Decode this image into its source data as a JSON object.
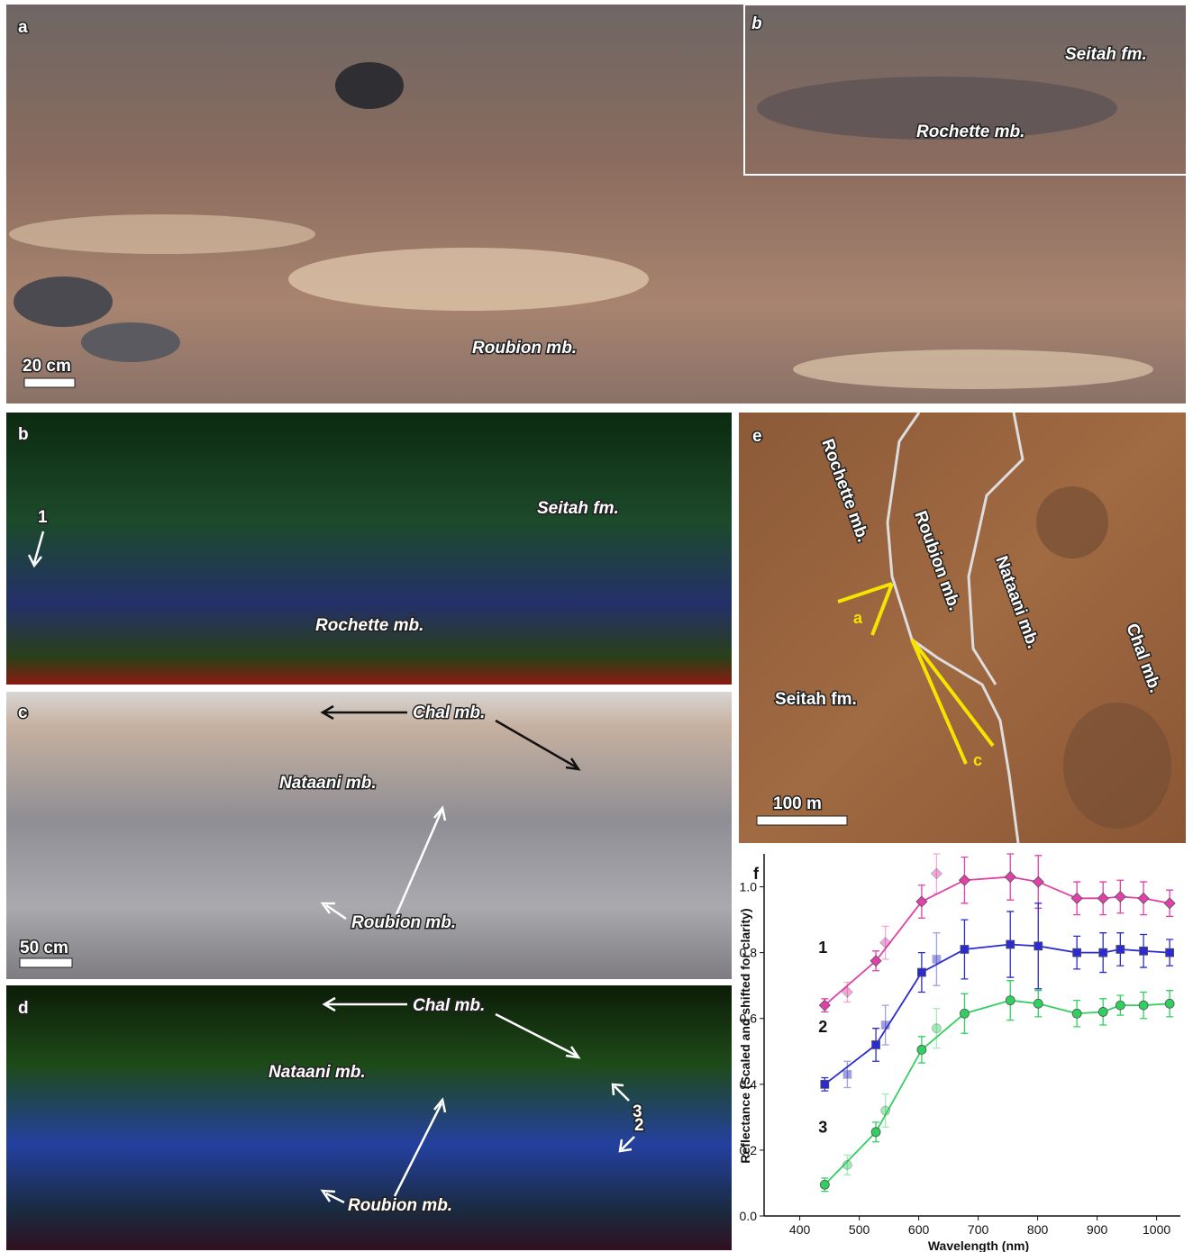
{
  "panels": {
    "a": {
      "label": "a",
      "inset_label": "b",
      "inset_seitah": "Seitah fm.",
      "inset_rochette": "Rochette mb.",
      "roubion": "Roubion mb.",
      "scale": "20 cm"
    },
    "b": {
      "label": "b",
      "seitah": "Seitah fm.",
      "rochette": "Rochette mb.",
      "point": "1"
    },
    "c": {
      "label": "c",
      "chal": "Chal mb.",
      "nataani": "Nataani mb.",
      "roubion": "Roubion mb.",
      "scale": "50 cm"
    },
    "d": {
      "label": "d",
      "chal": "Chal mb.",
      "nataani": "Nataani mb.",
      "roubion": "Roubion mb.",
      "point3": "3",
      "point2": "2"
    },
    "e": {
      "label": "e",
      "rochette": "Rochette mb.",
      "roubion": "Roubion mb.",
      "nataani": "Nataani mb.",
      "chal": "Chal mb.",
      "seitah": "Seitah fm.",
      "view_a": "a",
      "view_c": "c",
      "scale": "100 m"
    }
  },
  "chart_data": {
    "type": "line",
    "label": "f",
    "xlabel": "Wavelength (nm)",
    "ylabel": "Reflectance (Scaled and shifted for clarity)",
    "x": [
      442,
      528,
      605,
      677,
      754,
      801,
      866,
      910,
      939,
      978,
      1022
    ],
    "xlim": [
      340,
      1040
    ],
    "xticks": [
      400,
      500,
      600,
      700,
      800,
      900,
      1000
    ],
    "ylim": [
      0,
      1.1
    ],
    "yticks": [
      {
        "value": 0,
        "label": "0.0"
      },
      0.2,
      0.4,
      0.6,
      0.8,
      {
        "value": 1,
        "label": "1.0"
      }
    ],
    "series": [
      {
        "name": "1",
        "color": "#e040a8",
        "marker": "diamond",
        "values": [
          0.64,
          0.775,
          0.955,
          1.02,
          1.03,
          1.015,
          0.965,
          0.965,
          0.97,
          0.965,
          0.95
        ],
        "errors": [
          0.02,
          0.03,
          0.05,
          0.07,
          0.07,
          0.08,
          0.05,
          0.05,
          0.05,
          0.05,
          0.04
        ],
        "aux_x": [
          480,
          544,
          630
        ],
        "aux_values": [
          0.68,
          0.83,
          1.04
        ],
        "aux_errors": [
          0.03,
          0.05,
          0.06
        ]
      },
      {
        "name": "2",
        "color": "#2b2bd0",
        "marker": "square",
        "values": [
          0.4,
          0.52,
          0.74,
          0.81,
          0.825,
          0.82,
          0.8,
          0.8,
          0.81,
          0.805,
          0.8
        ],
        "errors": [
          0.02,
          0.05,
          0.06,
          0.09,
          0.1,
          0.13,
          0.05,
          0.06,
          0.05,
          0.05,
          0.04
        ],
        "aux_x": [
          480,
          544,
          630
        ],
        "aux_values": [
          0.43,
          0.58,
          0.78
        ],
        "aux_errors": [
          0.04,
          0.06,
          0.08
        ]
      },
      {
        "name": "3",
        "color": "#30d060",
        "marker": "circle",
        "values": [
          0.095,
          0.255,
          0.505,
          0.615,
          0.655,
          0.645,
          0.615,
          0.62,
          0.64,
          0.64,
          0.645
        ],
        "errors": [
          0.02,
          0.03,
          0.04,
          0.06,
          0.06,
          0.04,
          0.04,
          0.04,
          0.03,
          0.04,
          0.04
        ],
        "aux_x": [
          480,
          544,
          630
        ],
        "aux_values": [
          0.155,
          0.32,
          0.57
        ],
        "aux_errors": [
          0.03,
          0.05,
          0.06
        ]
      }
    ]
  }
}
